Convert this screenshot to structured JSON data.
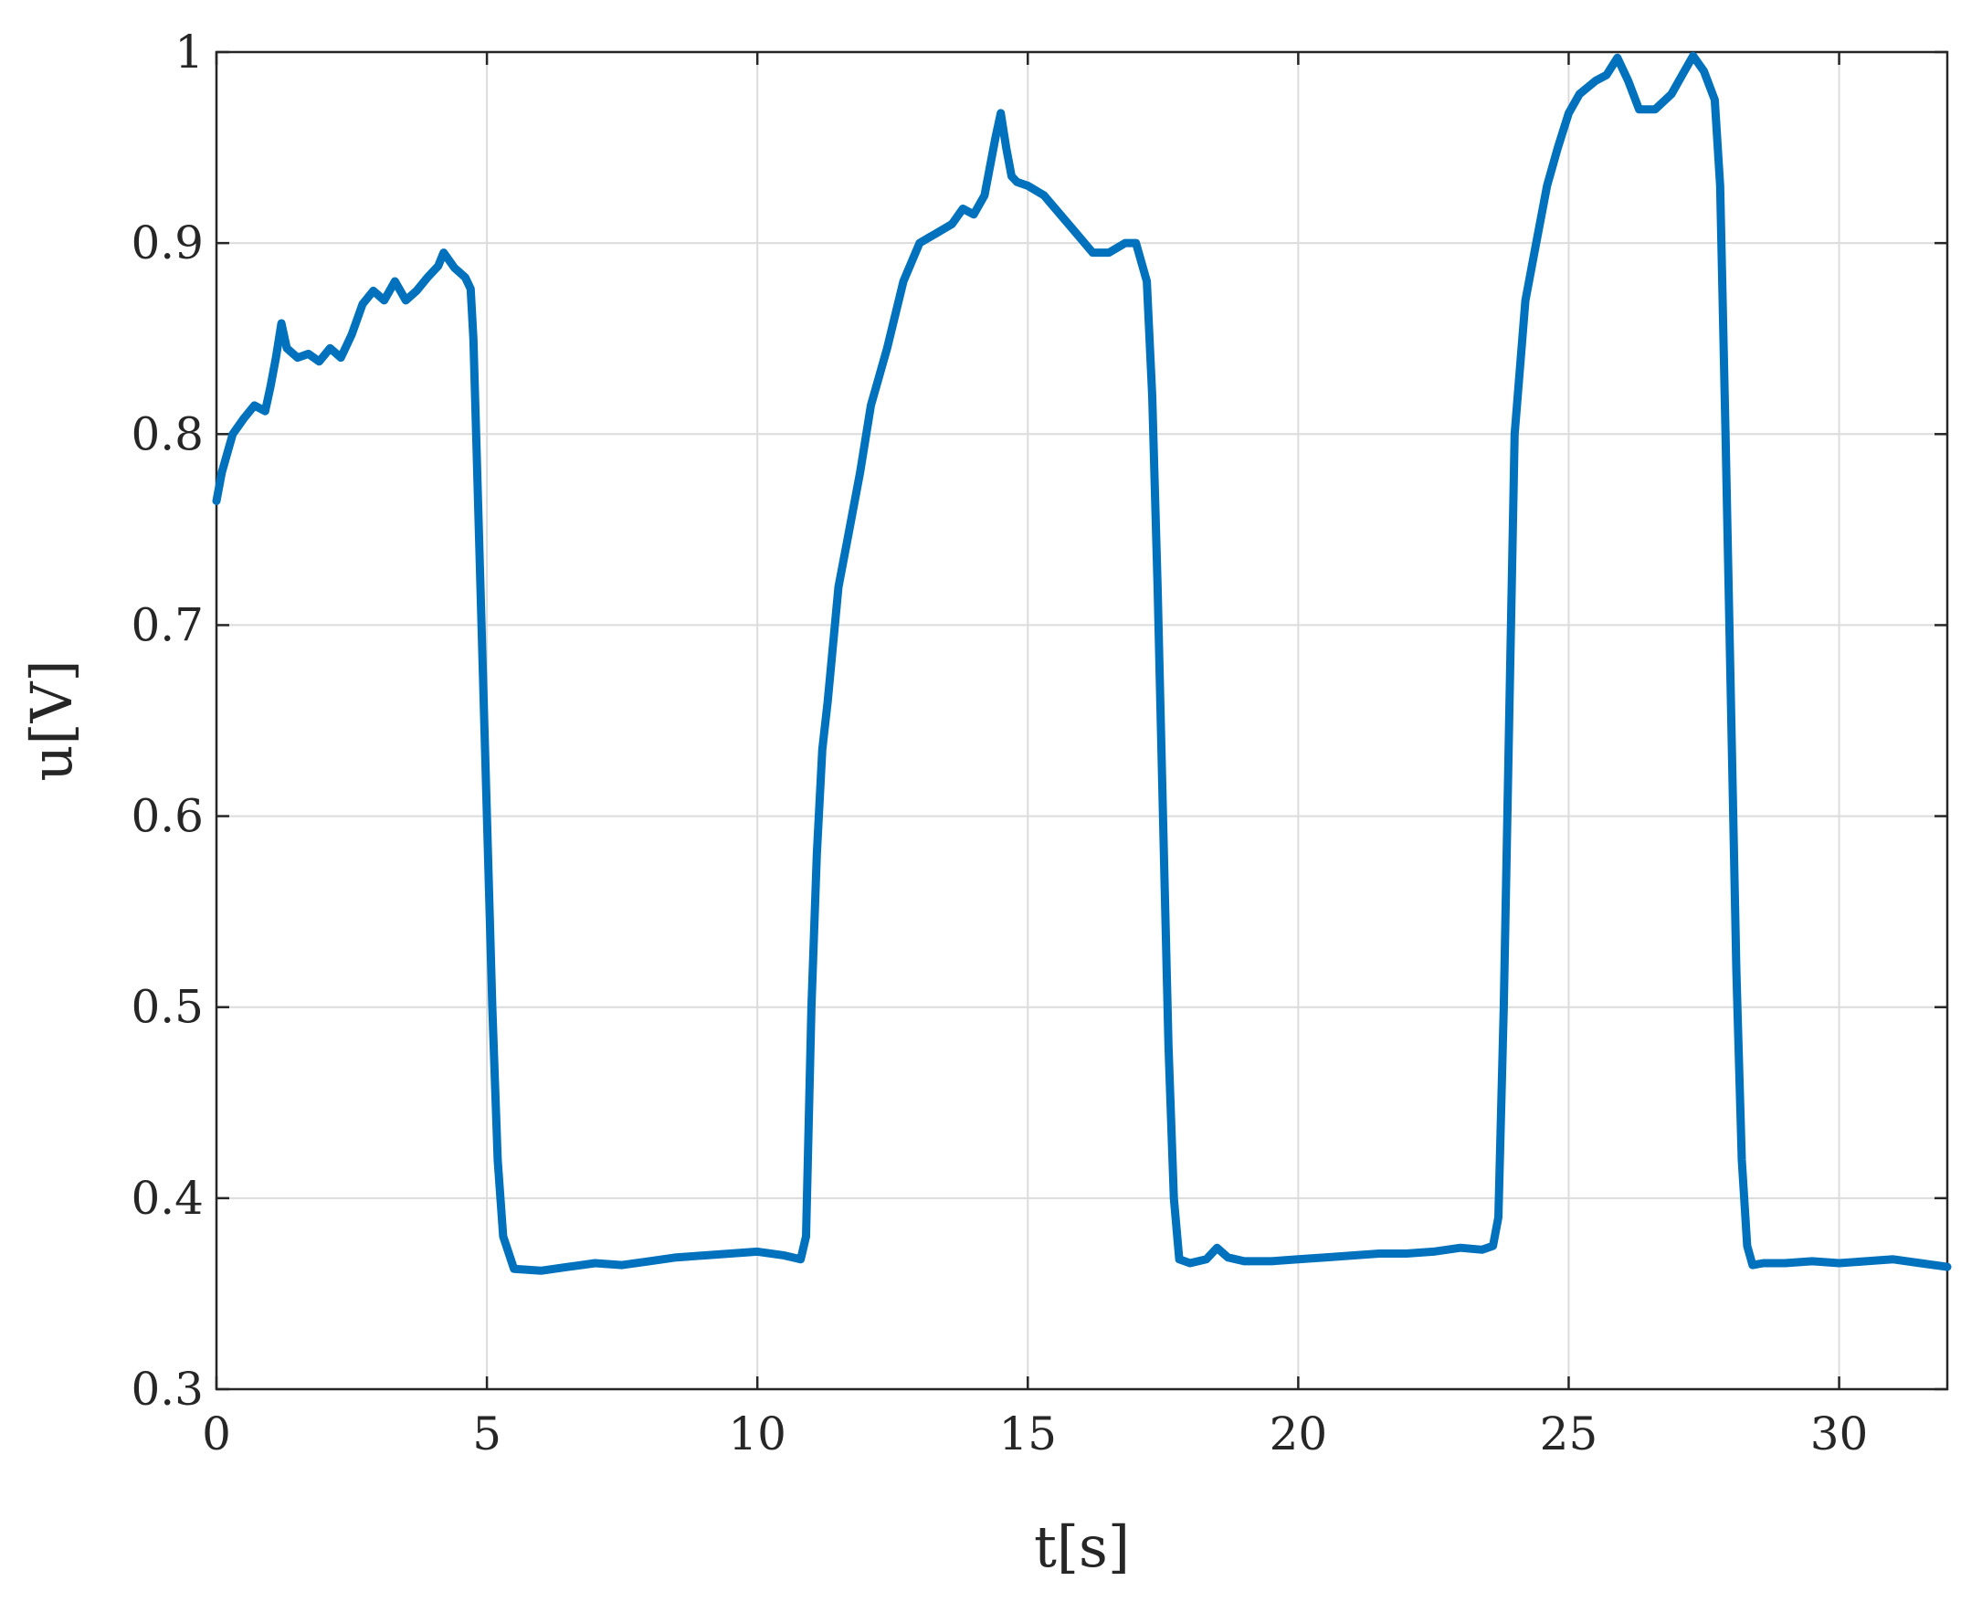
{
  "chart_data": {
    "type": "line",
    "title": "",
    "xlabel": "t[s]",
    "ylabel": "u[V]",
    "xlim": [
      0,
      32
    ],
    "ylim": [
      0.3,
      1.0
    ],
    "x_ticks": [
      "0",
      "5",
      "10",
      "15",
      "20",
      "25",
      "30"
    ],
    "y_ticks": [
      "0.3",
      "0.4",
      "0.5",
      "0.6",
      "0.7",
      "0.8",
      "0.9",
      "1"
    ],
    "grid": true,
    "legend": "none",
    "series_color": "#0072BD",
    "series": [
      {
        "x": [
          0.0,
          0.1,
          0.3,
          0.5,
          0.7,
          0.9,
          1.0,
          1.1,
          1.2,
          1.3,
          1.5,
          1.7,
          1.9,
          2.1,
          2.3,
          2.5,
          2.7,
          2.9,
          3.1,
          3.3,
          3.5,
          3.7,
          3.9,
          4.1,
          4.2,
          4.4,
          4.6,
          4.7,
          4.75,
          4.8,
          4.9,
          5.0,
          5.1,
          5.2,
          5.3,
          5.5,
          6.0,
          6.5,
          7.0,
          7.5,
          8.0,
          8.5,
          9.0,
          9.5,
          10.0,
          10.5,
          10.8,
          10.9,
          11.0,
          11.1,
          11.2,
          11.3,
          11.5,
          11.7,
          11.9,
          12.1,
          12.4,
          12.7,
          13.0,
          13.3,
          13.6,
          13.8,
          14.0,
          14.2,
          14.4,
          14.5,
          14.6,
          14.7,
          14.8,
          15.0,
          15.3,
          15.6,
          15.9,
          16.2,
          16.5,
          16.8,
          17.0,
          17.2,
          17.3,
          17.4,
          17.5,
          17.6,
          17.7,
          17.8,
          18.0,
          18.3,
          18.5,
          18.7,
          19.0,
          19.5,
          20.0,
          20.5,
          21.0,
          21.5,
          22.0,
          22.5,
          23.0,
          23.4,
          23.6,
          23.7,
          23.8,
          23.9,
          24.0,
          24.2,
          24.4,
          24.6,
          24.8,
          25.0,
          25.2,
          25.5,
          25.7,
          25.9,
          26.1,
          26.3,
          26.6,
          26.9,
          27.1,
          27.3,
          27.5,
          27.7,
          27.8,
          27.9,
          28.0,
          28.1,
          28.2,
          28.3,
          28.4,
          28.6,
          29.0,
          29.5,
          30.0,
          30.5,
          31.0,
          31.5,
          32.0
        ],
        "y": [
          0.765,
          0.78,
          0.8,
          0.808,
          0.815,
          0.812,
          0.825,
          0.84,
          0.858,
          0.845,
          0.84,
          0.842,
          0.838,
          0.845,
          0.84,
          0.852,
          0.868,
          0.875,
          0.87,
          0.88,
          0.87,
          0.875,
          0.882,
          0.888,
          0.895,
          0.887,
          0.882,
          0.876,
          0.85,
          0.8,
          0.7,
          0.6,
          0.5,
          0.42,
          0.38,
          0.363,
          0.362,
          0.364,
          0.366,
          0.365,
          0.367,
          0.369,
          0.37,
          0.371,
          0.372,
          0.37,
          0.368,
          0.38,
          0.5,
          0.58,
          0.635,
          0.66,
          0.72,
          0.75,
          0.78,
          0.815,
          0.845,
          0.88,
          0.9,
          0.905,
          0.91,
          0.918,
          0.915,
          0.925,
          0.955,
          0.968,
          0.95,
          0.935,
          0.932,
          0.93,
          0.925,
          0.915,
          0.905,
          0.895,
          0.895,
          0.9,
          0.9,
          0.88,
          0.82,
          0.72,
          0.6,
          0.48,
          0.4,
          0.368,
          0.366,
          0.368,
          0.374,
          0.369,
          0.367,
          0.367,
          0.368,
          0.369,
          0.37,
          0.371,
          0.371,
          0.372,
          0.374,
          0.373,
          0.375,
          0.39,
          0.5,
          0.65,
          0.8,
          0.87,
          0.9,
          0.93,
          0.95,
          0.968,
          0.978,
          0.985,
          0.988,
          0.997,
          0.985,
          0.97,
          0.97,
          0.978,
          0.988,
          0.998,
          0.99,
          0.975,
          0.93,
          0.8,
          0.66,
          0.52,
          0.42,
          0.375,
          0.365,
          0.366,
          0.366,
          0.367,
          0.366,
          0.367,
          0.368,
          0.366,
          0.364
        ]
      }
    ]
  }
}
